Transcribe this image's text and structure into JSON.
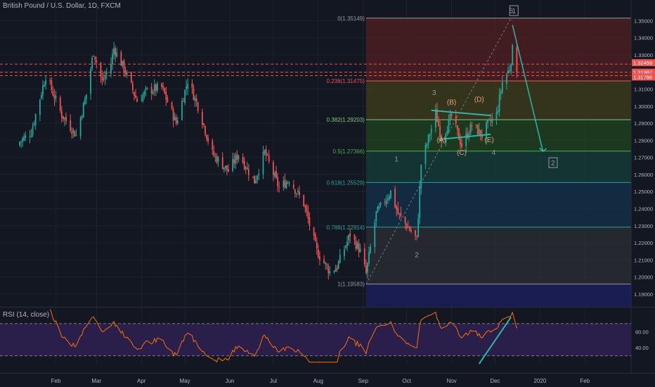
{
  "header": {
    "title": "British Pound / U.S. Dollar, 1D, FXCM"
  },
  "rsi": {
    "title": "RSI (14, close)",
    "levels": [
      "60.00",
      "40.00"
    ]
  },
  "colors": {
    "background": "#131722",
    "up": "#26a69a",
    "down": "#ef5350",
    "rsi_line": "#ff6d00",
    "rsi_band": "#2a1f4a",
    "trendline": "#2ab7a9",
    "axis_text": "#b2b5be",
    "grid": "#1e222d"
  },
  "chart_data": {
    "type": "candlestick",
    "symbol": "British Pound / U.S. Dollar",
    "timeframe": "1D",
    "source": "FXCM",
    "y_ticks": [
      "1.35000",
      "1.34000",
      "1.33000",
      "1.32000",
      "1.31000",
      "1.30000",
      "1.29000",
      "1.28000",
      "1.27000",
      "1.26000",
      "1.25000",
      "1.24000",
      "1.23000",
      "1.22000",
      "1.21000",
      "1.20000",
      "1.19000"
    ],
    "y_tick_values": [
      1.35,
      1.34,
      1.33,
      1.32,
      1.31,
      1.3,
      1.29,
      1.28,
      1.27,
      1.26,
      1.25,
      1.24,
      1.23,
      1.22,
      1.21,
      1.2,
      1.19
    ],
    "ylim": [
      1.185,
      1.358
    ],
    "x_labels": [
      "Feb",
      "Mar",
      "Apr",
      "May",
      "Jun",
      "Jul",
      "Aug",
      "Sep",
      "Oct",
      "Nov",
      "Dec",
      "2020",
      "Feb"
    ],
    "price_tags": [
      {
        "label": "1.32459",
        "value": 1.32459,
        "color": "#ef5350"
      },
      {
        "label": "1.31987",
        "value": 1.31987,
        "color": "#ef5350"
      },
      {
        "label": "1.31786",
        "value": 1.31786,
        "color": "#ef5350"
      }
    ],
    "fib_levels": [
      {
        "label": "0(1.35149)",
        "value": 1.35149,
        "fill": "#4a1f22"
      },
      {
        "label": "0.236(1.31475)",
        "value": 1.31475,
        "fill": "#3a3a1a"
      },
      {
        "label": "0.382(1.29203)",
        "value": 1.29203,
        "fill": "#1e4020"
      },
      {
        "label": "0.5(1.27366)",
        "value": 1.27366,
        "fill": "#143a36"
      },
      {
        "label": "0.618(1.25529)",
        "value": 1.25529,
        "fill": "#132f45"
      },
      {
        "label": "0.786(1.22914)",
        "value": 1.22914,
        "fill": "#2a2c33"
      },
      {
        "label": "1(1.19583)",
        "value": 1.19583,
        "fill": "#1b1f5a"
      }
    ],
    "wave_labels": [
      {
        "text": "1",
        "x": "Sep 24",
        "y": 1.2675
      },
      {
        "text": "2",
        "x": "Oct 8",
        "y": 1.2115
      },
      {
        "text": "3",
        "x": "Oct 20",
        "y": 1.3065
      },
      {
        "text": "4",
        "x": "Nov 30",
        "y": 1.2715
      },
      {
        "text": "5",
        "x": "Dec 12",
        "y": 1.3545
      },
      {
        "text": "(A)",
        "x": "Oct 25",
        "y": 1.279
      },
      {
        "text": "(B)",
        "x": "Nov 1",
        "y": 1.301
      },
      {
        "text": "(C)",
        "x": "Nov 8",
        "y": 1.2715
      },
      {
        "text": "(D)",
        "x": "Nov 20",
        "y": 1.3025
      },
      {
        "text": "(E)",
        "x": "Nov 27",
        "y": 1.279
      }
    ],
    "boxed_labels": [
      {
        "text": "1",
        "x": "Dec 14",
        "y": 1.3555
      },
      {
        "text": "2",
        "x": "Jan 10",
        "y": 1.2665
      }
    ],
    "rsi_ylim": [
      20,
      90
    ],
    "rsi_levels": [
      70,
      30
    ],
    "ohlc": []
  }
}
